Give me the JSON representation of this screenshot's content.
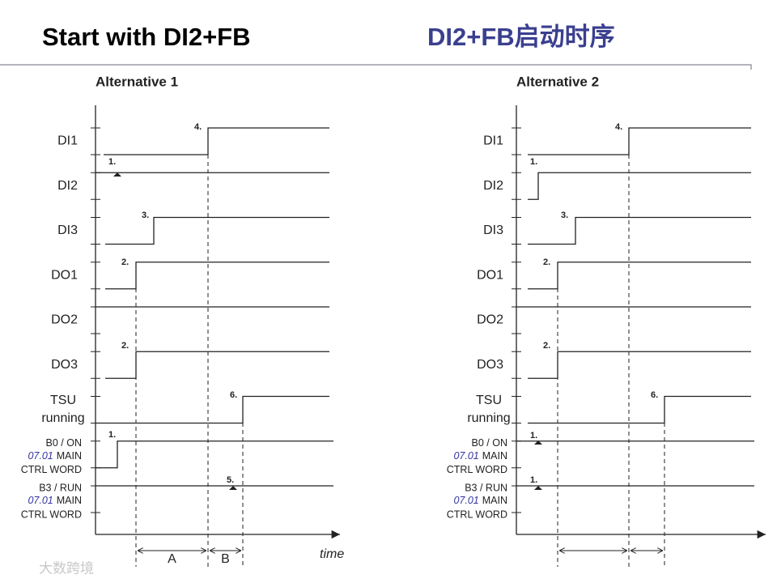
{
  "header": {
    "title": "Start with DI2+FB",
    "title_cn": "DI2+FB启动时序"
  },
  "diagrams": [
    {
      "title": "Alternative 1",
      "signals": [
        {
          "lines": [
            "DI1"
          ]
        },
        {
          "lines": [
            "DI2"
          ]
        },
        {
          "lines": [
            "DI3"
          ]
        },
        {
          "lines": [
            "DO1"
          ]
        },
        {
          "lines": [
            "DO2"
          ]
        },
        {
          "lines": [
            "DO3"
          ]
        },
        {
          "lines": [
            "TSU",
            "running"
          ]
        },
        {
          "bit": "B0 / ON",
          "param": "07.01",
          "param_name": "MAIN",
          "word": "CTRL WORD"
        },
        {
          "bit": "B3 / RUN",
          "param": "07.01",
          "param_name": "MAIN",
          "word": "CTRL WORD"
        }
      ],
      "steps": [
        "4.",
        "1.",
        "3.",
        "2.",
        "2.",
        "6.",
        "1.",
        "5."
      ],
      "intervals": [
        "A",
        "B"
      ],
      "time_label": "time"
    },
    {
      "title": "Alternative 2",
      "signals": [
        {
          "lines": [
            "DI1"
          ]
        },
        {
          "lines": [
            "DI2"
          ]
        },
        {
          "lines": [
            "DI3"
          ]
        },
        {
          "lines": [
            "DO1"
          ]
        },
        {
          "lines": [
            "DO2"
          ]
        },
        {
          "lines": [
            "DO3"
          ]
        },
        {
          "lines": [
            "TSU",
            "running"
          ]
        },
        {
          "bit": "B0 / ON",
          "param": "07.01",
          "param_name": "MAIN",
          "word": "CTRL WORD"
        },
        {
          "bit": "B3 / RUN",
          "param": "07.01",
          "param_name": "MAIN",
          "word": "CTRL WORD"
        }
      ],
      "steps": [
        "4.",
        "1.",
        "3.",
        "2.",
        "2.",
        "6.",
        "1.",
        "1."
      ]
    }
  ],
  "watermark": "大数跨境"
}
